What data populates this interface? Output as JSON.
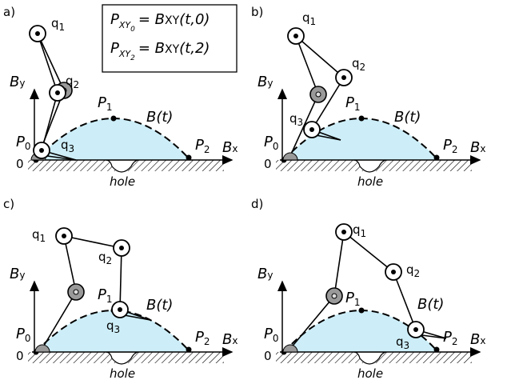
{
  "formula_box": {
    "lines": [
      {
        "lhs": "P",
        "lhs_sub": "XY",
        "lhs_subsub": "0",
        "rhs": "= B",
        "rhs_sub": "XY",
        "rhs_tail": "(t,0)"
      },
      {
        "lhs": "P",
        "lhs_sub": "XY",
        "lhs_subsub": "2",
        "rhs": "= B",
        "rhs_sub": "XY",
        "rhs_tail": "(t,2)"
      }
    ]
  },
  "panels": [
    {
      "label": "a)",
      "joints": [
        {
          "base": "q",
          "sub": "1"
        },
        {
          "base": "q",
          "sub": "2"
        },
        {
          "base": "q",
          "sub": "3"
        }
      ],
      "axis_y": {
        "base": "B",
        "sub": "y"
      },
      "axis_x": {
        "base": "B",
        "sub": "x"
      },
      "origin": "0",
      "points": [
        {
          "base": "P",
          "sub": "0"
        },
        {
          "base": "P",
          "sub": "1"
        },
        {
          "base": "P",
          "sub": "2"
        }
      ],
      "curve": "B(t)",
      "hole": "hole"
    },
    {
      "label": "b)",
      "joints": [
        {
          "base": "q",
          "sub": "1"
        },
        {
          "base": "q",
          "sub": "2"
        },
        {
          "base": "q",
          "sub": "3"
        }
      ],
      "axis_y": {
        "base": "B",
        "sub": "y"
      },
      "axis_x": {
        "base": "B",
        "sub": "x"
      },
      "origin": "0",
      "points": [
        {
          "base": "P",
          "sub": "0"
        },
        {
          "base": "P",
          "sub": "1"
        },
        {
          "base": "P",
          "sub": "2"
        }
      ],
      "curve": "B(t)",
      "hole": "hole"
    },
    {
      "label": "c)",
      "joints": [
        {
          "base": "q",
          "sub": "1"
        },
        {
          "base": "q",
          "sub": "2"
        },
        {
          "base": "q",
          "sub": "3"
        }
      ],
      "axis_y": {
        "base": "B",
        "sub": "y"
      },
      "axis_x": {
        "base": "B",
        "sub": "x"
      },
      "origin": "0",
      "points": [
        {
          "base": "P",
          "sub": "0"
        },
        {
          "base": "P",
          "sub": "1"
        },
        {
          "base": "P",
          "sub": "2"
        }
      ],
      "curve": "B(t)",
      "hole": "hole"
    },
    {
      "label": "d)",
      "joints": [
        {
          "base": "q",
          "sub": "1"
        },
        {
          "base": "q",
          "sub": "2"
        },
        {
          "base": "q",
          "sub": "3"
        }
      ],
      "axis_y": {
        "base": "B",
        "sub": "y"
      },
      "axis_x": {
        "base": "B",
        "sub": "x"
      },
      "origin": "0",
      "points": [
        {
          "base": "P",
          "sub": "0"
        },
        {
          "base": "P",
          "sub": "1"
        },
        {
          "base": "P",
          "sub": "2"
        }
      ],
      "curve": "B(t)",
      "hole": "hole"
    }
  ]
}
